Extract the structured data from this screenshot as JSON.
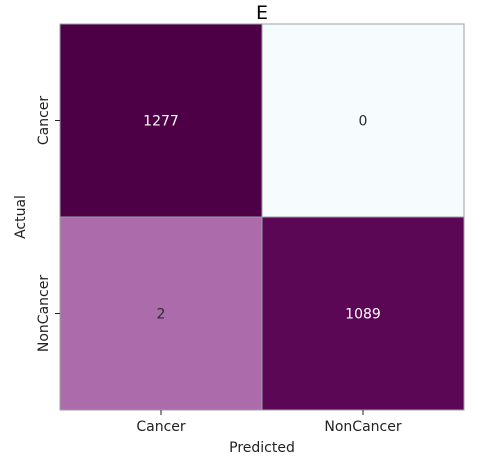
{
  "chart_data": {
    "type": "heatmap",
    "title": "E",
    "xlabel": "Predicted",
    "ylabel": "Actual",
    "x_categories": [
      "Cancer",
      "NonCancer"
    ],
    "y_categories": [
      "Cancer",
      "NonCancer"
    ],
    "values": [
      [
        1277,
        0
      ],
      [
        2,
        1089
      ]
    ],
    "colors": {
      "high": "#4d0045",
      "mid": "#81177c",
      "low": "#f6fcfd",
      "grid": "#9aa0a6",
      "text_dark": "#2b2b2b",
      "text_light": "#ffffff"
    },
    "colorbar": false
  }
}
